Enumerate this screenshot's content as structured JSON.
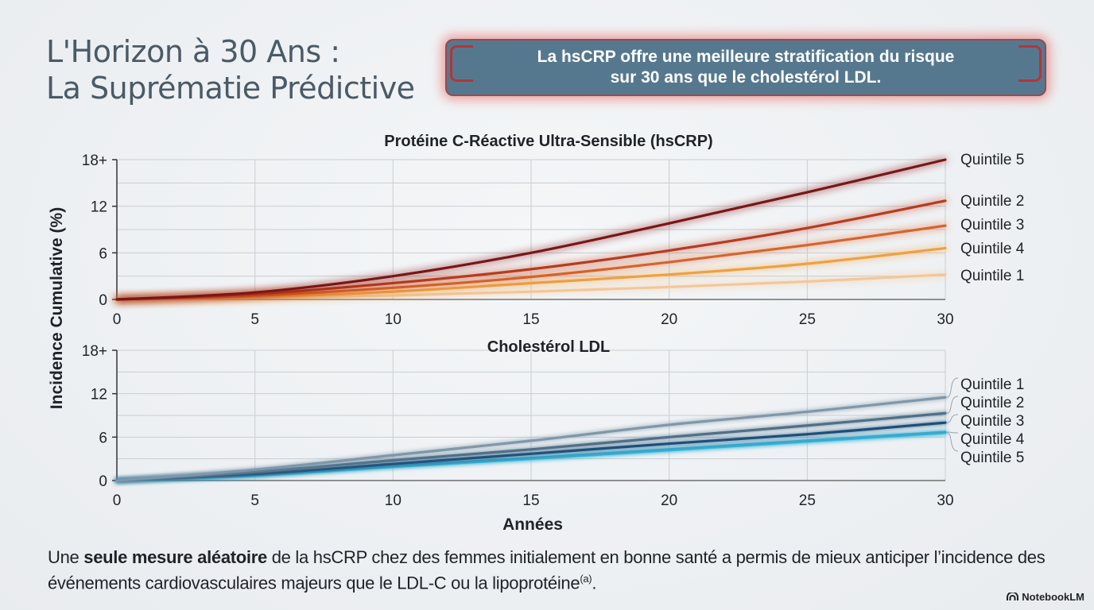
{
  "title": {
    "line1": "L'Horizon à 30 Ans :",
    "line2": "La Suprématie Prédictive"
  },
  "callout": {
    "line1": "La hsCRP offre une meilleure stratification du risque",
    "line2": "sur 30 ans que le cholestérol LDL."
  },
  "footer": {
    "pre": "Une ",
    "bold": "seule mesure aléatoire",
    "mid": " de la hsCRP chez des femmes initialement en bonne santé a permis de mieux anticiper l’incidence des événements cardiovasculaires majeurs que le LDL-C ou la lipoprotéine",
    "sup": "(a)",
    "post": "."
  },
  "brand": "NotebookLM",
  "chart_data": [
    {
      "type": "line",
      "title": "Protéine C-Réactive Ultra-Sensible (hsCRP)",
      "ylabel": "Incidence Cumulative (%)",
      "xlabel": "",
      "xlim": [
        0,
        30
      ],
      "ylim": [
        0,
        18
      ],
      "xticks": [
        "0",
        "5",
        "10",
        "15",
        "20",
        "25",
        "30"
      ],
      "yticks": [
        "0",
        "6",
        "12",
        "18+"
      ],
      "grid": true,
      "legend": "right",
      "x": [
        0,
        5,
        10,
        15,
        20,
        25,
        30
      ],
      "series": [
        {
          "name": "Quintile 5",
          "color": "#7a1414",
          "values": [
            0,
            0.9,
            3.0,
            6.0,
            9.8,
            13.8,
            18.0
          ]
        },
        {
          "name": "Quintile 2",
          "color": "#b83a1c",
          "values": [
            0,
            0.7,
            2.1,
            3.9,
            6.3,
            9.2,
            12.7
          ]
        },
        {
          "name": "Quintile 3",
          "color": "#d8642a",
          "values": [
            0,
            0.5,
            1.5,
            2.9,
            4.8,
            7.0,
            9.5
          ]
        },
        {
          "name": "Quintile 4",
          "color": "#f0a040",
          "values": [
            0,
            0.3,
            1.0,
            2.1,
            3.2,
            4.6,
            6.6
          ]
        },
        {
          "name": "Quintile 1",
          "color": "#f3c79a",
          "values": [
            0,
            0.2,
            0.5,
            1.0,
            1.6,
            2.3,
            3.2
          ]
        }
      ]
    },
    {
      "type": "line",
      "title": "Cholestérol LDL",
      "ylabel": "Incidence Cumulative (%)",
      "xlabel": "Années",
      "xlim": [
        0,
        30
      ],
      "ylim": [
        0,
        18
      ],
      "xticks": [
        "0",
        "5",
        "10",
        "15",
        "20",
        "25",
        "30"
      ],
      "yticks": [
        "0",
        "6",
        "12",
        "18+"
      ],
      "grid": true,
      "legend": "right",
      "x": [
        0,
        5,
        10,
        15,
        20,
        25,
        30
      ],
      "series": [
        {
          "name": "Quintile 1",
          "color": "#7f97aa",
          "values": [
            0,
            1.5,
            3.5,
            5.5,
            7.7,
            9.5,
            11.5
          ]
        },
        {
          "name": "Quintile 2",
          "color": "#4f6f88",
          "values": [
            0,
            1.2,
            2.8,
            4.3,
            6.0,
            7.6,
            9.3
          ]
        },
        {
          "name": "Quintile 3",
          "color": "#1d4f7a",
          "values": [
            0,
            0.9,
            2.3,
            3.7,
            5.1,
            6.4,
            8.0
          ]
        },
        {
          "name": "Quintile 4",
          "color": "#3aa8cc",
          "values": [
            0,
            0.8,
            2.0,
            3.1,
            4.3,
            5.5,
            6.7
          ]
        },
        {
          "name": "Quintile 5",
          "color": "#33c2e0",
          "values": [
            0,
            0.7,
            1.9,
            3.0,
            4.2,
            5.4,
            6.6
          ]
        }
      ]
    }
  ]
}
